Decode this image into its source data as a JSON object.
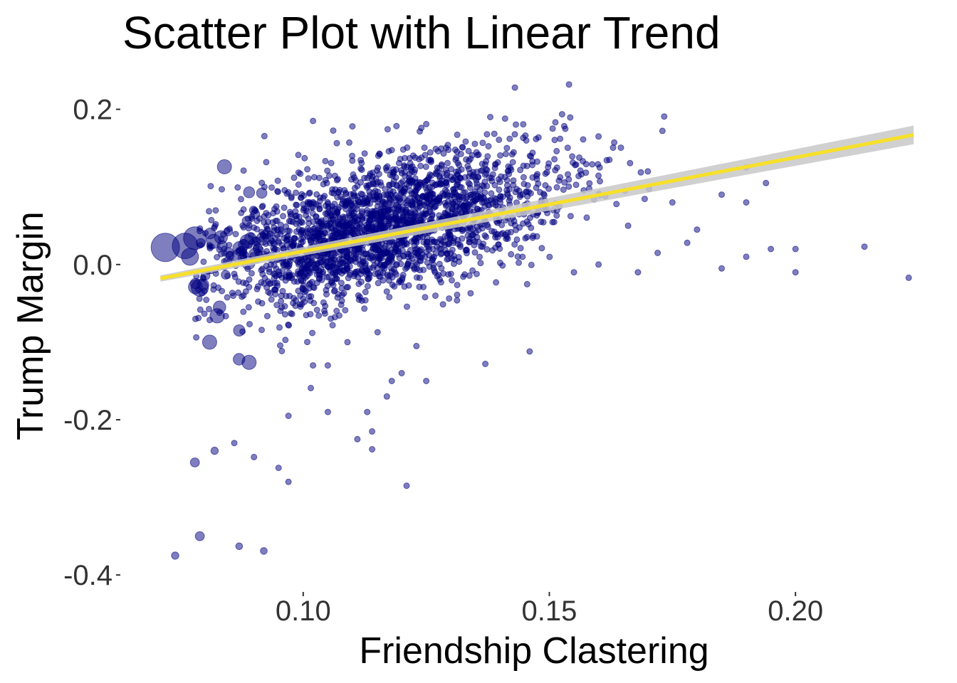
{
  "colors": {
    "points": "#000080",
    "trend_line": "#f7e02a",
    "confidence_band": "#c8c8c8",
    "text": "#000000",
    "tick_text": "#333333"
  },
  "chart_data": {
    "type": "scatter",
    "title": "Scatter Plot with Linear Trend",
    "xlabel": "Friendship Clastering",
    "ylabel": "Trump Margin",
    "xlim": [
      0.063,
      0.225
    ],
    "ylim": [
      -0.42,
      0.24
    ],
    "x_ticks": [
      {
        "value": 0.1,
        "label": "0.10"
      },
      {
        "value": 0.15,
        "label": "0.15"
      },
      {
        "value": 0.2,
        "label": "0.20"
      }
    ],
    "y_ticks": [
      {
        "value": 0.2,
        "label": "0.2"
      },
      {
        "value": 0.0,
        "label": "0.0"
      },
      {
        "value": -0.2,
        "label": "-0.2"
      },
      {
        "value": -0.4,
        "label": "-0.4"
      }
    ],
    "grid": false,
    "legend": "none",
    "point_opacity": 0.5,
    "trend": {
      "method": "linear",
      "x": [
        0.071,
        0.224
      ],
      "y": [
        -0.018,
        0.167
      ],
      "band_halfwidth": [
        0.004,
        0.012
      ]
    },
    "points": [
      {
        "x": 0.072,
        "y": 0.022,
        "s": 5
      },
      {
        "x": 0.076,
        "y": 0.024,
        "s": 4.5
      },
      {
        "x": 0.078,
        "y": 0.034,
        "s": 4
      },
      {
        "x": 0.077,
        "y": 0.01,
        "s": 3
      },
      {
        "x": 0.079,
        "y": -0.03,
        "s": 3
      },
      {
        "x": 0.081,
        "y": -0.1,
        "s": 2.5
      },
      {
        "x": 0.084,
        "y": 0.126,
        "s": 2.5
      },
      {
        "x": 0.089,
        "y": -0.126,
        "s": 2.5
      },
      {
        "x": 0.083,
        "y": -0.055,
        "s": 2.2
      },
      {
        "x": 0.087,
        "y": -0.085,
        "s": 2
      },
      {
        "x": 0.078,
        "y": -0.255,
        "s": 1.6
      },
      {
        "x": 0.079,
        "y": -0.35,
        "s": 1.6
      },
      {
        "x": 0.074,
        "y": -0.375,
        "s": 1.3
      },
      {
        "x": 0.082,
        "y": -0.24,
        "s": 1.3
      },
      {
        "x": 0.086,
        "y": -0.23,
        "s": 1
      },
      {
        "x": 0.087,
        "y": -0.363,
        "s": 1.2
      },
      {
        "x": 0.09,
        "y": -0.248,
        "s": 1
      },
      {
        "x": 0.092,
        "y": -0.369,
        "s": 1.2
      },
      {
        "x": 0.095,
        "y": -0.262,
        "s": 1
      },
      {
        "x": 0.097,
        "y": -0.28,
        "s": 1
      },
      {
        "x": 0.097,
        "y": -0.195,
        "s": 1
      },
      {
        "x": 0.114,
        "y": -0.238,
        "s": 1
      },
      {
        "x": 0.121,
        "y": -0.285,
        "s": 1
      },
      {
        "x": 0.111,
        "y": -0.225,
        "s": 1
      },
      {
        "x": 0.105,
        "y": -0.19,
        "s": 1
      },
      {
        "x": 0.114,
        "y": -0.215,
        "s": 1
      },
      {
        "x": 0.113,
        "y": -0.19,
        "s": 1
      },
      {
        "x": 0.117,
        "y": -0.17,
        "s": 1
      },
      {
        "x": 0.12,
        "y": -0.14,
        "s": 1
      },
      {
        "x": 0.118,
        "y": -0.15,
        "s": 1
      },
      {
        "x": 0.125,
        "y": -0.15,
        "s": 1
      },
      {
        "x": 0.137,
        "y": -0.128,
        "s": 1
      },
      {
        "x": 0.146,
        "y": -0.112,
        "s": 1
      },
      {
        "x": 0.102,
        "y": -0.13,
        "s": 1
      },
      {
        "x": 0.105,
        "y": -0.13,
        "s": 1
      },
      {
        "x": 0.109,
        "y": -0.1,
        "s": 1
      },
      {
        "x": 0.123,
        "y": -0.105,
        "s": 1
      },
      {
        "x": 0.134,
        "y": -0.037,
        "s": 1
      },
      {
        "x": 0.143,
        "y": 0.228,
        "s": 1
      },
      {
        "x": 0.154,
        "y": 0.232,
        "s": 1
      },
      {
        "x": 0.102,
        "y": 0.185,
        "s": 1
      },
      {
        "x": 0.11,
        "y": 0.178,
        "s": 1
      },
      {
        "x": 0.124,
        "y": 0.176,
        "s": 1
      },
      {
        "x": 0.138,
        "y": 0.19,
        "s": 1
      },
      {
        "x": 0.141,
        "y": 0.188,
        "s": 1
      },
      {
        "x": 0.16,
        "y": 0.165,
        "s": 1
      },
      {
        "x": 0.17,
        "y": 0.12,
        "s": 1
      },
      {
        "x": 0.185,
        "y": 0.09,
        "s": 1
      },
      {
        "x": 0.19,
        "y": 0.125,
        "s": 1
      },
      {
        "x": 0.194,
        "y": 0.105,
        "s": 1
      },
      {
        "x": 0.19,
        "y": 0.08,
        "s": 1
      },
      {
        "x": 0.2,
        "y": 0.02,
        "s": 1
      },
      {
        "x": 0.2,
        "y": -0.01,
        "s": 1
      },
      {
        "x": 0.214,
        "y": 0.023,
        "s": 1
      },
      {
        "x": 0.223,
        "y": -0.017,
        "s": 1
      },
      {
        "x": 0.195,
        "y": 0.02,
        "s": 1
      },
      {
        "x": 0.19,
        "y": 0.01,
        "s": 1
      },
      {
        "x": 0.185,
        "y": -0.005,
        "s": 1
      },
      {
        "x": 0.18,
        "y": 0.045,
        "s": 1
      },
      {
        "x": 0.178,
        "y": 0.028,
        "s": 1
      },
      {
        "x": 0.172,
        "y": 0.015,
        "s": 1
      },
      {
        "x": 0.168,
        "y": -0.01,
        "s": 1
      },
      {
        "x": 0.16,
        "y": 0.0,
        "s": 1
      },
      {
        "x": 0.155,
        "y": -0.01,
        "s": 1
      },
      {
        "x": 0.166,
        "y": 0.05,
        "s": 1
      },
      {
        "x": 0.175,
        "y": 0.08,
        "s": 1
      }
    ],
    "cloud": {
      "count": 2400,
      "seed": 7,
      "x_range": [
        0.078,
        0.175
      ],
      "x_mean": 0.115,
      "x_sd": 0.017,
      "y_intercept": -0.115,
      "y_slope": 1.4,
      "y_sd": 0.042
    }
  }
}
